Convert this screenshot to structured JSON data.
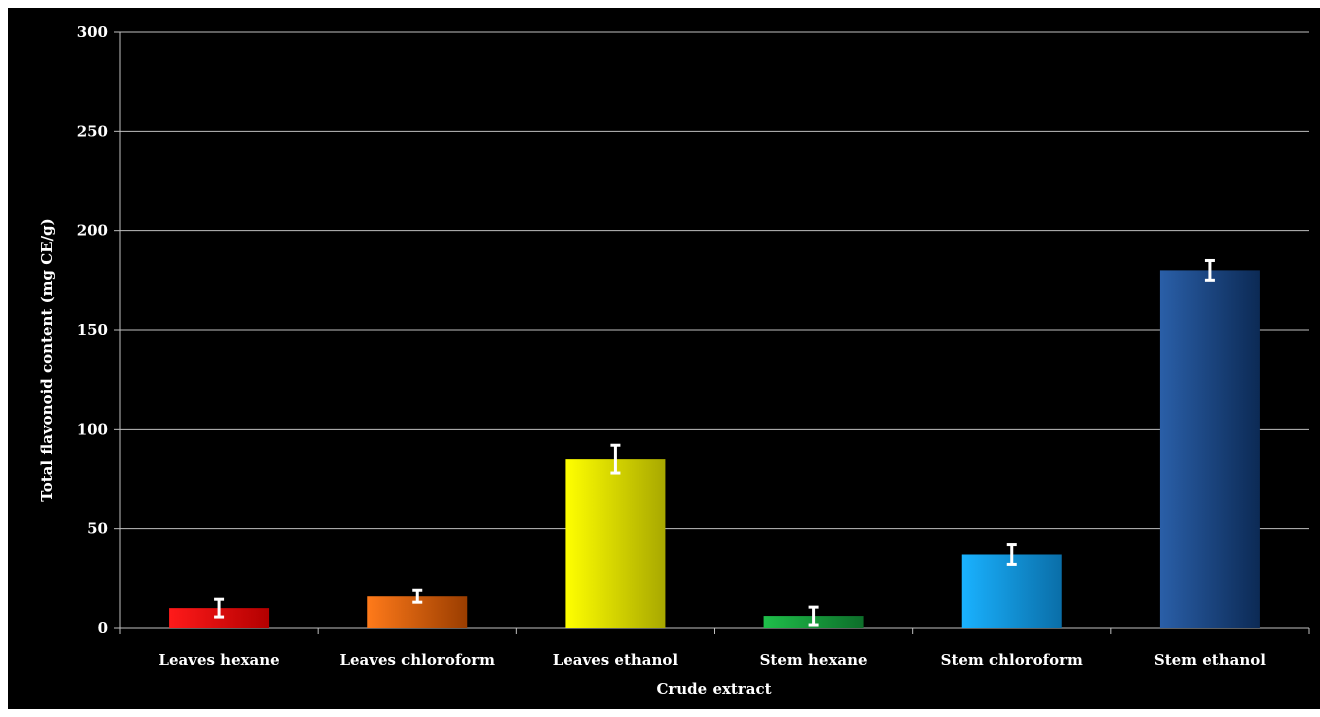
{
  "chart_data": {
    "type": "bar",
    "title": "",
    "xlabel": "Crude extract",
    "ylabel": "Total flavonoid content (mg CE/g)",
    "ylim": [
      0,
      300
    ],
    "yticks": [
      0,
      50,
      100,
      150,
      200,
      250,
      300
    ],
    "grid": true,
    "categories": [
      "Leaves hexane",
      "Leaves chloroform",
      "Leaves ethanol",
      "Stem hexane",
      "Stem chloroform",
      "Stem ethanol"
    ],
    "values": [
      10,
      16,
      85,
      6,
      37,
      180
    ],
    "errors": [
      4.5,
      3,
      7,
      4.5,
      5,
      5
    ],
    "colors": [
      [
        "#ff1a1a",
        "#b30000"
      ],
      [
        "#ff7a1a",
        "#9a3d00"
      ],
      [
        "#ffff00",
        "#a8a800"
      ],
      [
        "#1fbf4a",
        "#0d6e2a"
      ],
      [
        "#1ab2ff",
        "#0a6ea8"
      ],
      [
        "#2a5fa8",
        "#0c2a55"
      ]
    ]
  }
}
